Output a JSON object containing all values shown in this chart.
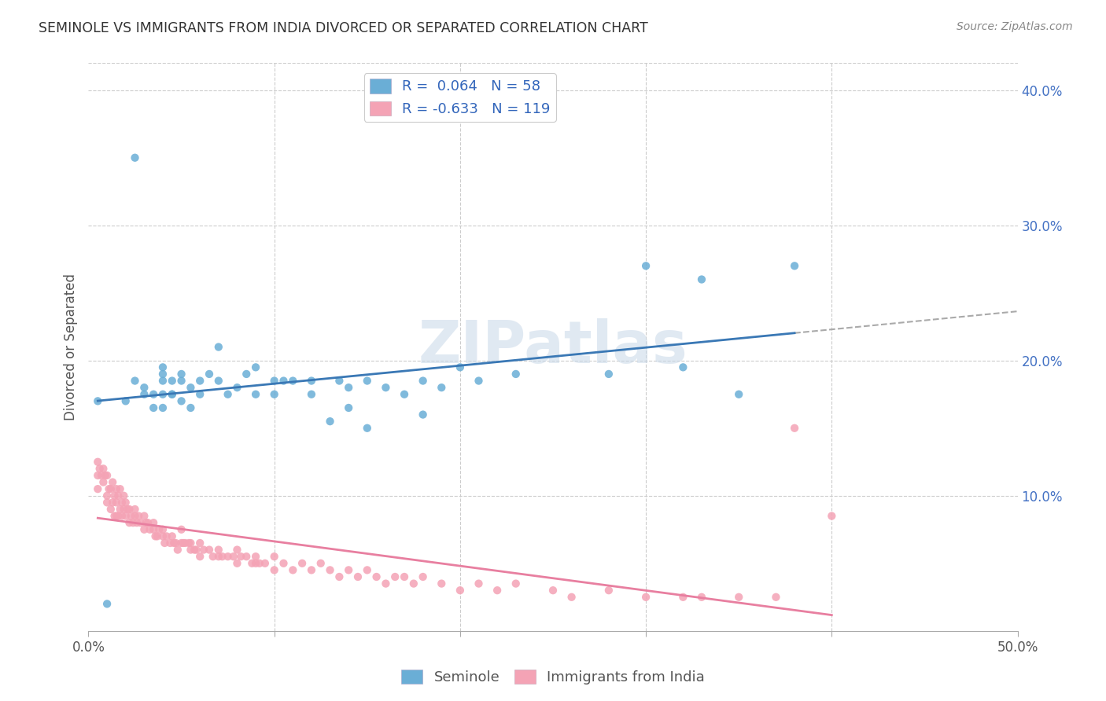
{
  "title": "SEMINOLE VS IMMIGRANTS FROM INDIA DIVORCED OR SEPARATED CORRELATION CHART",
  "source": "Source: ZipAtlas.com",
  "ylabel": "Divorced or Separated",
  "right_ytick_vals": [
    0.4,
    0.3,
    0.2,
    0.1
  ],
  "xlim": [
    0.0,
    0.5
  ],
  "ylim": [
    0.0,
    0.42
  ],
  "blue_color": "#6aaed6",
  "pink_color": "#f4a3b5",
  "blue_line_color": "#3a78b5",
  "pink_line_color": "#e87fa0",
  "watermark": "ZIPatlas",
  "seminole_x": [
    0.005,
    0.01,
    0.02,
    0.025,
    0.025,
    0.03,
    0.03,
    0.035,
    0.035,
    0.04,
    0.04,
    0.04,
    0.04,
    0.04,
    0.045,
    0.045,
    0.045,
    0.05,
    0.05,
    0.05,
    0.055,
    0.055,
    0.06,
    0.06,
    0.065,
    0.07,
    0.07,
    0.075,
    0.08,
    0.085,
    0.09,
    0.09,
    0.1,
    0.1,
    0.105,
    0.11,
    0.12,
    0.12,
    0.13,
    0.135,
    0.14,
    0.14,
    0.15,
    0.15,
    0.16,
    0.17,
    0.18,
    0.18,
    0.19,
    0.2,
    0.21,
    0.23,
    0.28,
    0.3,
    0.32,
    0.33,
    0.35,
    0.38
  ],
  "seminole_y": [
    0.17,
    0.02,
    0.17,
    0.185,
    0.35,
    0.18,
    0.175,
    0.165,
    0.175,
    0.185,
    0.19,
    0.175,
    0.165,
    0.195,
    0.175,
    0.185,
    0.175,
    0.185,
    0.19,
    0.17,
    0.18,
    0.165,
    0.185,
    0.175,
    0.19,
    0.21,
    0.185,
    0.175,
    0.18,
    0.19,
    0.195,
    0.175,
    0.185,
    0.175,
    0.185,
    0.185,
    0.175,
    0.185,
    0.155,
    0.185,
    0.165,
    0.18,
    0.185,
    0.15,
    0.18,
    0.175,
    0.185,
    0.16,
    0.18,
    0.195,
    0.185,
    0.19,
    0.19,
    0.27,
    0.195,
    0.26,
    0.175,
    0.27
  ],
  "india_x": [
    0.005,
    0.005,
    0.005,
    0.006,
    0.007,
    0.008,
    0.008,
    0.009,
    0.01,
    0.01,
    0.01,
    0.011,
    0.012,
    0.012,
    0.013,
    0.013,
    0.014,
    0.014,
    0.015,
    0.015,
    0.015,
    0.016,
    0.016,
    0.017,
    0.017,
    0.018,
    0.018,
    0.019,
    0.019,
    0.02,
    0.02,
    0.021,
    0.022,
    0.022,
    0.023,
    0.024,
    0.025,
    0.025,
    0.026,
    0.027,
    0.028,
    0.03,
    0.03,
    0.031,
    0.032,
    0.033,
    0.035,
    0.035,
    0.036,
    0.037,
    0.038,
    0.04,
    0.04,
    0.041,
    0.042,
    0.044,
    0.045,
    0.046,
    0.047,
    0.048,
    0.05,
    0.05,
    0.051,
    0.052,
    0.054,
    0.055,
    0.055,
    0.057,
    0.058,
    0.06,
    0.06,
    0.062,
    0.065,
    0.067,
    0.07,
    0.07,
    0.072,
    0.075,
    0.078,
    0.08,
    0.08,
    0.082,
    0.085,
    0.088,
    0.09,
    0.09,
    0.092,
    0.095,
    0.1,
    0.1,
    0.105,
    0.11,
    0.115,
    0.12,
    0.125,
    0.13,
    0.135,
    0.14,
    0.145,
    0.15,
    0.155,
    0.16,
    0.165,
    0.17,
    0.175,
    0.18,
    0.19,
    0.2,
    0.21,
    0.22,
    0.23,
    0.25,
    0.26,
    0.28,
    0.3,
    0.32,
    0.33,
    0.35,
    0.37,
    0.38,
    0.4
  ],
  "india_y": [
    0.125,
    0.115,
    0.105,
    0.12,
    0.115,
    0.11,
    0.12,
    0.115,
    0.1,
    0.115,
    0.095,
    0.105,
    0.105,
    0.09,
    0.11,
    0.095,
    0.1,
    0.085,
    0.105,
    0.095,
    0.085,
    0.1,
    0.085,
    0.105,
    0.09,
    0.095,
    0.085,
    0.1,
    0.09,
    0.095,
    0.085,
    0.09,
    0.09,
    0.08,
    0.085,
    0.08,
    0.085,
    0.09,
    0.08,
    0.085,
    0.08,
    0.085,
    0.075,
    0.08,
    0.08,
    0.075,
    0.08,
    0.075,
    0.07,
    0.07,
    0.075,
    0.07,
    0.075,
    0.065,
    0.07,
    0.065,
    0.07,
    0.065,
    0.065,
    0.06,
    0.065,
    0.075,
    0.065,
    0.065,
    0.065,
    0.06,
    0.065,
    0.06,
    0.06,
    0.055,
    0.065,
    0.06,
    0.06,
    0.055,
    0.055,
    0.06,
    0.055,
    0.055,
    0.055,
    0.05,
    0.06,
    0.055,
    0.055,
    0.05,
    0.05,
    0.055,
    0.05,
    0.05,
    0.055,
    0.045,
    0.05,
    0.045,
    0.05,
    0.045,
    0.05,
    0.045,
    0.04,
    0.045,
    0.04,
    0.045,
    0.04,
    0.035,
    0.04,
    0.04,
    0.035,
    0.04,
    0.035,
    0.03,
    0.035,
    0.03,
    0.035,
    0.03,
    0.025,
    0.03,
    0.025,
    0.025,
    0.025,
    0.025,
    0.025,
    0.15,
    0.085
  ]
}
